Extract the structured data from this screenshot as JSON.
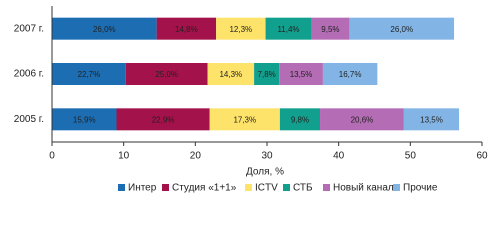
{
  "chart_data": {
    "type": "stacked-barh",
    "categories": [
      "2007 г.",
      "2006 г.",
      "2005 г."
    ],
    "series": [
      {
        "name": "Интер",
        "color": "#1d6db3",
        "values": [
          14.6,
          10.3,
          9.0
        ],
        "share_labels": [
          "26,0%",
          "22,7%",
          "15,9%"
        ]
      },
      {
        "name": "Студия «1+1»",
        "color": "#a3124a",
        "values": [
          8.3,
          11.4,
          13.0
        ],
        "share_labels": [
          "14,8%",
          "25,0%",
          "22,9%"
        ]
      },
      {
        "name": "ICTV",
        "color": "#fde36a",
        "values": [
          6.9,
          6.5,
          9.8
        ],
        "share_labels": [
          "12,3%",
          "14,3%",
          "17,3%"
        ]
      },
      {
        "name": "СТБ",
        "color": "#12a08e",
        "values": [
          6.4,
          3.5,
          5.6
        ],
        "share_labels": [
          "11,4%",
          "7,8%",
          "9,8%"
        ]
      },
      {
        "name": "Новый канал",
        "color": "#b46cb4",
        "values": [
          5.3,
          6.1,
          11.7
        ],
        "share_labels": [
          "9,5%",
          "13,5%",
          "20,6%"
        ]
      },
      {
        "name": "Прочие",
        "color": "#82b5e6",
        "values": [
          14.6,
          7.6,
          7.7
        ],
        "share_labels": [
          "26,0%",
          "16,7%",
          "13,5%"
        ]
      }
    ],
    "xlabel": "Доля, %",
    "xlim": [
      0,
      60
    ],
    "xticks": [
      0,
      10,
      20,
      30,
      40,
      50,
      60
    ]
  }
}
